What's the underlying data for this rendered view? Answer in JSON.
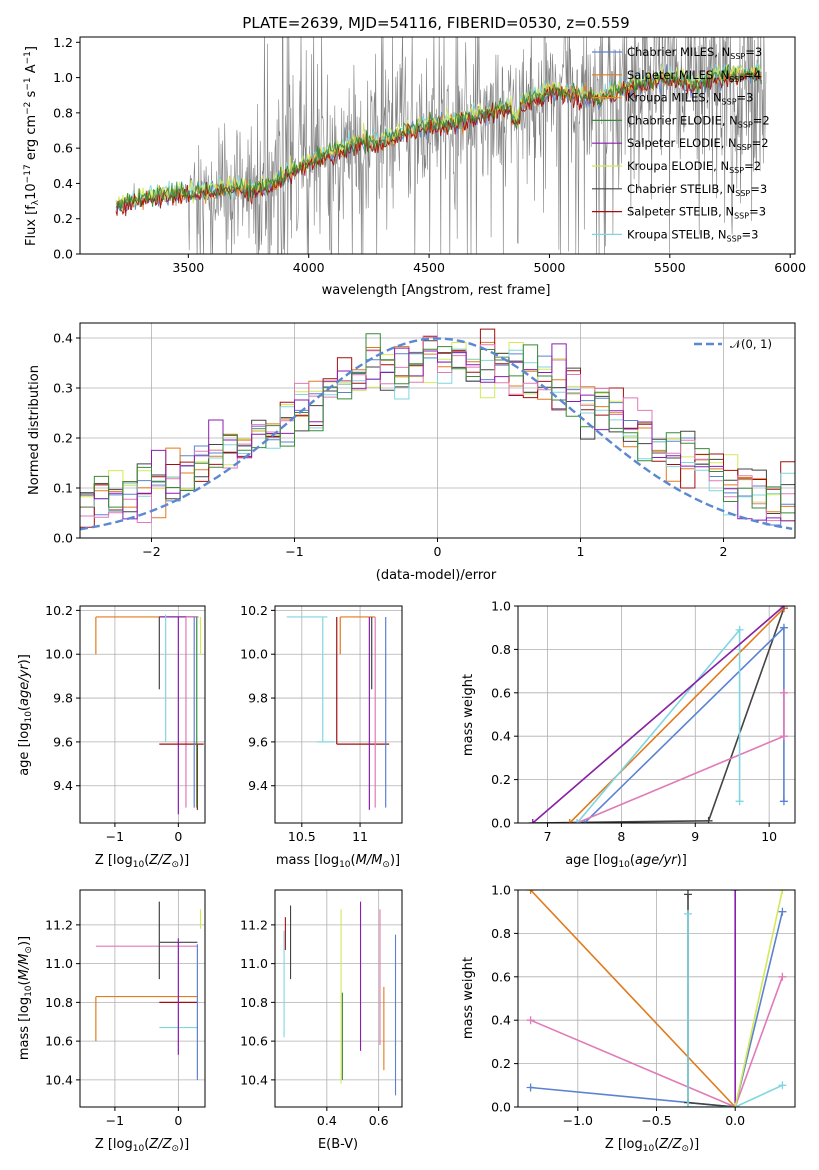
{
  "figure_title": "PLATE=2639, MJD=54116, FIBERID=0530, z=0.559",
  "colors": {
    "chabrier_miles": "#5b82d1",
    "salpeter_miles": "#e07b1e",
    "kroupa_miles": "#e0901e",
    "chabrier_elodie": "#3a8a3a",
    "salpeter_elodie": "#8a1eb0",
    "kroupa_elodie": "#d4e85a",
    "chabrier_stelib": "#444444",
    "salpeter_stelib": "#a01010",
    "kroupa_stelib": "#7fd6e0",
    "pink": "#e07ab8",
    "data": "#808080",
    "gaussian": "#5b88d0"
  },
  "legend": {
    "chabrier_miles": "Chabrier MILES, N",
    "chabrier_miles_n": "=3",
    "salpeter_miles": "Salpeter MILES, N",
    "salpeter_miles_n": "=4",
    "kroupa_miles": "Kroupa MILES, N",
    "kroupa_miles_n": "=3",
    "chabrier_elodie": "Chabrier ELODIE, N",
    "chabrier_elodie_n": "=2",
    "salpeter_elodie": "Salpeter ELODIE, N",
    "salpeter_elodie_n": "=2",
    "kroupa_elodie": "Kroupa ELODIE, N",
    "kroupa_elodie_n": "=2",
    "chabrier_stelib": "Chabrier STELIB, N",
    "chabrier_stelib_n": "=3",
    "salpeter_stelib": "Salpeter STELIB, N",
    "salpeter_stelib_n": "=3",
    "kroupa_stelib": "Kroupa STELIB, N",
    "kroupa_stelib_n": "=3",
    "ssp_sub": "SSP",
    "gaussian": "𝒩(0, 1)"
  },
  "chart_data": [
    {
      "type": "line",
      "id": "spectrum",
      "xlabel": "wavelength [Angstrom, rest frame]",
      "ylabel": "Flux [f",
      "xlim": [
        3050,
        6020
      ],
      "ylim": [
        0,
        1.23
      ],
      "xticks": [
        3500,
        4000,
        4500,
        5000,
        5500,
        6000
      ],
      "yticks": [
        0.0,
        0.2,
        0.4,
        0.6,
        0.8,
        1.0,
        1.2
      ],
      "continuum_x": [
        3200,
        3300,
        3400,
        3500,
        3600,
        3700,
        3800,
        3900,
        4000,
        4100,
        4200,
        4300,
        4400,
        4500,
        4600,
        4700,
        4800,
        4900,
        5000,
        5100,
        5200,
        5300,
        5400,
        5500,
        5600,
        5700,
        5800,
        5900
      ],
      "continuum_y": [
        0.27,
        0.31,
        0.33,
        0.34,
        0.36,
        0.38,
        0.36,
        0.44,
        0.52,
        0.57,
        0.63,
        0.63,
        0.69,
        0.73,
        0.75,
        0.78,
        0.82,
        0.86,
        0.92,
        0.9,
        0.88,
        0.93,
        0.97,
        0.99,
        0.96,
        1.0,
        1.02,
        1.01
      ]
    },
    {
      "type": "line",
      "id": "residual_hist",
      "xlabel": "(data-model)/error",
      "ylabel": "Normed distribution",
      "xlim": [
        -2.5,
        2.5
      ],
      "ylim": [
        0,
        0.43
      ],
      "xticks": [
        -2,
        -1,
        0,
        1,
        2
      ],
      "yticks": [
        0.0,
        0.1,
        0.2,
        0.3,
        0.4
      ],
      "bin_width": 0.1,
      "gaussian_mean": 0,
      "gaussian_sigma": 1
    },
    {
      "type": "scatter",
      "id": "age_vs_Z",
      "xlabel": "Z [log",
      "ylabel": "age  [log",
      "xlim": [
        -1.55,
        0.42
      ],
      "ylim": [
        9.23,
        10.22
      ],
      "xticks": [
        -1,
        0
      ],
      "yticks": [
        9.4,
        9.6,
        9.8,
        10.0,
        10.2
      ],
      "points": [
        {
          "color": "#e07b1e",
          "x": -1.3,
          "y": 10.17,
          "xerr": [
            0.0,
            1.6
          ],
          "yerr": [
            0.17,
            0.0
          ]
        },
        {
          "color": "#444444",
          "x": -0.3,
          "y": 10.17,
          "xerr": [
            0.0,
            0.6
          ],
          "yerr": [
            0.33,
            0.0
          ]
        },
        {
          "color": "#8a1eb0",
          "x": 0.0,
          "y": 10.17,
          "xerr": [
            0.3,
            0.3
          ],
          "yerr": [
            0.9,
            0.0
          ]
        },
        {
          "color": "#e07ab8",
          "x": 0.12,
          "y": 10.17,
          "xerr": [
            0.0,
            0.2
          ],
          "yerr": [
            0.87,
            0.0
          ]
        },
        {
          "color": "#7fd6e0",
          "x": -0.2,
          "y": 9.6,
          "xerr": [
            0.0,
            0.0
          ],
          "yerr": [
            0.0,
            0.58
          ]
        },
        {
          "color": "#a01010",
          "x": 0.3,
          "y": 9.59,
          "xerr": [
            0.6,
            0.1
          ],
          "yerr": [
            0.3,
            0.0
          ]
        },
        {
          "color": "#3a8a3a",
          "x": 0.29,
          "y": 10.17,
          "xerr": [
            0.0,
            0.0
          ],
          "yerr": [
            0.87,
            0.0
          ]
        },
        {
          "color": "#d4e85a",
          "x": 0.35,
          "y": 10.17,
          "xerr": [
            0.0,
            0.0
          ],
          "yerr": [
            0.17,
            0.0
          ]
        },
        {
          "color": "#5b82d1",
          "x": 0.25,
          "y": 10.17,
          "xerr": [
            0.0,
            0.0
          ],
          "yerr": [
            0.87,
            0.0
          ]
        }
      ]
    },
    {
      "type": "scatter",
      "id": "age_vs_mass",
      "xlabel": "mass [log",
      "ylabel": "",
      "xlim": [
        10.27,
        11.36
      ],
      "ylim": [
        9.23,
        10.22
      ],
      "xticks": [
        10.5,
        11.0
      ],
      "yticks": [
        9.4,
        9.6,
        9.8,
        10.0,
        10.2
      ],
      "points": [
        {
          "color": "#7fd6e0",
          "x": 10.72,
          "y": 10.17,
          "xerr": [
            0.35,
            0.0
          ],
          "yerr": [
            0.0,
            0.0
          ]
        },
        {
          "color": "#7fd6e0",
          "x": 10.68,
          "y": 9.6,
          "xerr": [
            0.05,
            0.1
          ],
          "yerr": [
            0.0,
            0.57
          ]
        },
        {
          "color": "#e07b1e",
          "x": 10.83,
          "y": 10.17,
          "xerr": [
            0.0,
            0.3
          ],
          "yerr": [
            0.17,
            0.0
          ]
        },
        {
          "color": "#a01010",
          "x": 10.8,
          "y": 9.59,
          "xerr": [
            0.0,
            0.45
          ],
          "yerr": [
            0.0,
            0.58
          ]
        },
        {
          "color": "#444444",
          "x": 11.1,
          "y": 10.17,
          "xerr": [
            0.0,
            0.0
          ],
          "yerr": [
            0.33,
            0.0
          ]
        },
        {
          "color": "#8a1eb0",
          "x": 11.08,
          "y": 10.17,
          "xerr": [
            0.0,
            0.0
          ],
          "yerr": [
            0.88,
            0.0
          ]
        },
        {
          "color": "#5b82d1",
          "x": 11.22,
          "y": 10.17,
          "xerr": [
            0.0,
            0.0
          ],
          "yerr": [
            0.87,
            0.0
          ]
        },
        {
          "color": "#e07ab8",
          "x": 11.13,
          "y": 10.17,
          "xerr": [
            0.0,
            0.0
          ],
          "yerr": [
            0.87,
            0.0
          ]
        },
        {
          "color": "#d4e85a",
          "x": 11.2,
          "y": 10.17,
          "xerr": [
            0.0,
            0.0
          ],
          "yerr": [
            0.0,
            0.0
          ]
        }
      ]
    },
    {
      "type": "line",
      "id": "massweight_vs_age",
      "xlabel": "age  [log",
      "ylabel": "mass weight",
      "xlim": [
        6.6,
        10.35
      ],
      "ylim": [
        0,
        1.0
      ],
      "xticks": [
        7,
        8,
        9,
        10
      ],
      "yticks": [
        0.0,
        0.2,
        0.4,
        0.6,
        0.8,
        1.0
      ],
      "lines": [
        {
          "color": "#444444",
          "x": [
            6.8,
            9.18,
            10.2
          ],
          "y": [
            0.0,
            0.01,
            0.99
          ]
        },
        {
          "color": "#5b82d1",
          "x": [
            7.5,
            10.2,
            10.2
          ],
          "y": [
            0.0,
            0.9,
            0.1
          ]
        },
        {
          "color": "#e07ab8",
          "x": [
            7.4,
            10.2,
            10.2
          ],
          "y": [
            0.0,
            0.4,
            0.6
          ]
        },
        {
          "color": "#e07b1e",
          "x": [
            7.3,
            10.2
          ],
          "y": [
            0.0,
            0.99
          ]
        },
        {
          "color": "#d4e85a",
          "x": [
            6.8,
            10.2
          ],
          "y": [
            0.0,
            1.0
          ]
        },
        {
          "color": "#7fd6e0",
          "x": [
            7.4,
            9.6,
            9.6
          ],
          "y": [
            0.0,
            0.89,
            0.1
          ]
        },
        {
          "color": "#8a1eb0",
          "x": [
            6.8,
            10.2
          ],
          "y": [
            0.0,
            1.0
          ]
        }
      ]
    },
    {
      "type": "scatter",
      "id": "mass_vs_Z",
      "xlabel": "Z [log",
      "ylabel": "mass [log",
      "xlim": [
        -1.55,
        0.42
      ],
      "ylim": [
        10.26,
        11.38
      ],
      "xticks": [
        -1,
        0
      ],
      "yticks": [
        10.4,
        10.6,
        10.8,
        11.0,
        11.2
      ],
      "points": [
        {
          "color": "#e07ab8",
          "x": -1.3,
          "y": 11.09,
          "xerr": [
            0.0,
            1.6
          ],
          "yerr": [
            0.0,
            0.0
          ]
        },
        {
          "color": "#e07b1e",
          "x": -1.3,
          "y": 10.83,
          "xerr": [
            0.0,
            1.6
          ],
          "yerr": [
            0.23,
            0.0
          ]
        },
        {
          "color": "#444444",
          "x": -0.3,
          "y": 11.11,
          "xerr": [
            0.0,
            0.6
          ],
          "yerr": [
            0.19,
            0.21
          ]
        },
        {
          "color": "#a01010",
          "x": 0.3,
          "y": 10.8,
          "xerr": [
            0.6,
            0.0
          ],
          "yerr": [
            0.0,
            0.0
          ]
        },
        {
          "color": "#7fd6e0",
          "x": 0.0,
          "y": 10.67,
          "xerr": [
            0.3,
            0.3
          ],
          "yerr": [
            0.0,
            0.0
          ]
        },
        {
          "color": "#8a1eb0",
          "x": 0.0,
          "y": 11.13,
          "xerr": [
            0.0,
            0.0
          ],
          "yerr": [
            0.6,
            0.0
          ]
        },
        {
          "color": "#d4e85a",
          "x": 0.35,
          "y": 11.18,
          "xerr": [
            0.0,
            0.0
          ],
          "yerr": [
            0.0,
            0.1
          ]
        },
        {
          "color": "#5b82d1",
          "x": 0.3,
          "y": 11.1,
          "xerr": [
            0.0,
            0.0
          ],
          "yerr": [
            0.7,
            0.0
          ]
        }
      ]
    },
    {
      "type": "scatter",
      "id": "mass_vs_ebv",
      "xlabel": "E(B-V)",
      "ylabel": "",
      "xlim": [
        0.2,
        0.69
      ],
      "ylim": [
        10.26,
        11.38
      ],
      "xticks": [
        0.4,
        0.6
      ],
      "yticks": [
        10.4,
        10.6,
        10.8,
        11.0,
        11.2
      ],
      "segments": [
        {
          "color": "#7fd6e0",
          "x": 0.235,
          "y0": 10.62,
          "y1": 11.17
        },
        {
          "color": "#a01010",
          "x": 0.24,
          "y0": 11.07,
          "y1": 11.24
        },
        {
          "color": "#444444",
          "x": 0.26,
          "y0": 10.92,
          "y1": 11.3
        },
        {
          "color": "#d4e85a",
          "x": 0.455,
          "y0": 10.38,
          "y1": 11.28
        },
        {
          "color": "#3a8a3a",
          "x": 0.46,
          "y0": 10.4,
          "y1": 10.85
        },
        {
          "color": "#8a1eb0",
          "x": 0.53,
          "y0": 10.55,
          "y1": 11.32
        },
        {
          "color": "#e07ab8",
          "x": 0.605,
          "y0": 10.58,
          "y1": 11.28
        },
        {
          "color": "#e07b1e",
          "x": 0.62,
          "y0": 10.45,
          "y1": 10.88
        },
        {
          "color": "#5b82d1",
          "x": 0.665,
          "y0": 10.32,
          "y1": 11.15
        }
      ]
    },
    {
      "type": "line",
      "id": "massweight_vs_Z",
      "xlabel": "Z [log",
      "ylabel": "mass weight",
      "xlim": [
        -1.38,
        0.38
      ],
      "ylim": [
        0,
        1.0
      ],
      "xticks": [
        -1.0,
        -0.5,
        0.0
      ],
      "yticks": [
        0.0,
        0.2,
        0.4,
        0.6,
        0.8,
        1.0
      ],
      "lines": [
        {
          "color": "#e07b1e",
          "x": [
            -1.3,
            0.0
          ],
          "y": [
            1.0,
            0.0
          ]
        },
        {
          "color": "#e07ab8",
          "x": [
            -1.3,
            0.0,
            0.3
          ],
          "y": [
            0.4,
            0.0,
            0.6
          ]
        },
        {
          "color": "#5b82d1",
          "x": [
            -1.3,
            0.0,
            0.3
          ],
          "y": [
            0.09,
            0.0,
            0.9
          ]
        },
        {
          "color": "#444444",
          "x": [
            -0.3,
            -0.3,
            0.0
          ],
          "y": [
            0.98,
            0.02,
            0.0
          ]
        },
        {
          "color": "#7fd6e0",
          "x": [
            -0.3,
            -0.3,
            0.0,
            0.3
          ],
          "y": [
            0.89,
            0.0,
            0.0,
            0.1
          ]
        },
        {
          "color": "#8a1eb0",
          "x": [
            0.0,
            0.0
          ],
          "y": [
            0.0,
            1.0
          ]
        },
        {
          "color": "#d4e85a",
          "x": [
            0.0,
            0.3
          ],
          "y": [
            0.0,
            1.0
          ]
        }
      ]
    }
  ]
}
